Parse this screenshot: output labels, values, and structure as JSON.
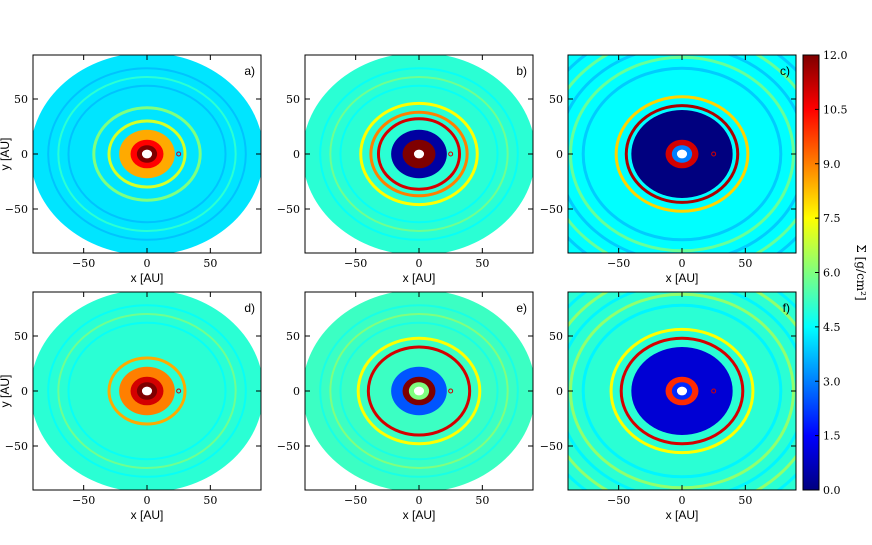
{
  "chart_data": {
    "type": "heatmap",
    "panels": [
      {
        "label": "a)",
        "disk": "filled",
        "xlabel": "x [AU]",
        "ylabel": "y [AU]",
        "center": 12.0,
        "inner_ring": 10.5,
        "gap_depth": 0,
        "rings": [
          {
            "r": 30,
            "v": 7.0
          },
          {
            "r": 42,
            "v": 6.0
          }
        ],
        "bg": 4.2,
        "planet_r": 25
      },
      {
        "label": "b)",
        "disk": "filled",
        "xlabel": "x [AU]",
        "ylabel": "",
        "center": 12.0,
        "inner_ring": 12.0,
        "gap_depth": 0.4,
        "rings": [
          {
            "r": 32,
            "v": 11.0
          },
          {
            "r": 38,
            "v": 9.0
          },
          {
            "r": 46,
            "v": 7.5
          }
        ],
        "bg": 5.0,
        "planet_r": 25
      },
      {
        "label": "c)",
        "disk": "full",
        "xlabel": "x [AU]",
        "ylabel": "",
        "center": 3.0,
        "inner_ring": 11.0,
        "gap_depth": 0.0,
        "rings": [
          {
            "r": 44,
            "v": 11.5
          },
          {
            "r": 52,
            "v": 8.0
          }
        ],
        "bg": 4.5,
        "planet_r": 25
      },
      {
        "label": "d)",
        "disk": "filled",
        "xlabel": "x [AU]",
        "ylabel": "y [AU]",
        "center": 12.0,
        "inner_ring": 11.0,
        "gap_depth": 0,
        "rings": [
          {
            "r": 30,
            "v": 8.5
          }
        ],
        "bg": 5.0,
        "planet_r": 25
      },
      {
        "label": "e)",
        "disk": "filled",
        "xlabel": "x [AU]",
        "ylabel": "",
        "center": 6.0,
        "inner_ring": 12.0,
        "gap_depth": 2.5,
        "rings": [
          {
            "r": 40,
            "v": 11.0
          },
          {
            "r": 48,
            "v": 7.5
          }
        ],
        "bg": 5.2,
        "planet_r": 25
      },
      {
        "label": "f)",
        "disk": "full",
        "xlabel": "x [AU]",
        "ylabel": "",
        "center": 2.0,
        "inner_ring": 10.0,
        "gap_depth": 1.0,
        "rings": [
          {
            "r": 48,
            "v": 11.0
          },
          {
            "r": 56,
            "v": 7.5
          }
        ],
        "bg": 5.0,
        "planet_r": 25
      }
    ],
    "xlim": [
      -90,
      90
    ],
    "ylim": [
      -90,
      90
    ],
    "xticks": [
      -50,
      0,
      50
    ],
    "yticks": [
      50,
      0,
      -50
    ],
    "xtick_labels": [
      "−50",
      "0",
      "50"
    ],
    "ytick_labels": [
      "50",
      "0",
      "−50"
    ],
    "colorbar": {
      "label": "Σ [g/cm²]",
      "range": [
        0.0,
        12.0
      ],
      "ticks": [
        "12.0",
        "10.5",
        "9.0",
        "7.5",
        "6.0",
        "4.5",
        "3.0",
        "1.5",
        "0.0"
      ],
      "colormap": "jet"
    },
    "colormap_stops": [
      "#00007f",
      "#0000ff",
      "#007fff",
      "#00ffff",
      "#7fff7f",
      "#ffff00",
      "#ff7f00",
      "#ff0000",
      "#7f0000"
    ]
  }
}
